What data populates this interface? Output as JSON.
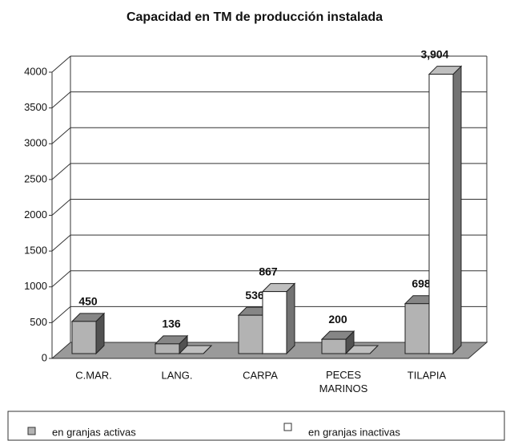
{
  "chart_data": {
    "type": "bar3d",
    "title": "Capacidad  en TM de producción instalada",
    "categories": [
      "C.MAR.",
      "LANG.",
      "CARPA",
      "PECES MARINOS",
      "TILAPIA"
    ],
    "series": [
      {
        "name": "en granjas activas",
        "color": "#b3b3b3",
        "values": [
          450,
          136,
          536,
          200,
          698
        ]
      },
      {
        "name": "en granjas inactivas",
        "color": "#ffffff",
        "values": [
          null,
          0,
          867,
          0,
          3904
        ],
        "value_labels": [
          null,
          null,
          "867",
          null,
          "3,904"
        ]
      }
    ],
    "ylim": [
      0,
      4000
    ],
    "yticks": [
      0,
      500,
      1000,
      1500,
      2000,
      2500,
      3000,
      3500,
      4000
    ],
    "grid": true
  }
}
